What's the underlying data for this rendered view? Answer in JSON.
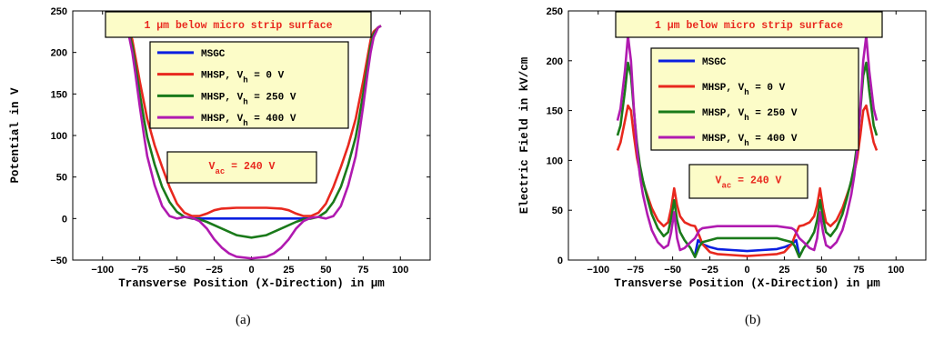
{
  "chart_data": [
    {
      "type": "line",
      "panel_caption": "(a)",
      "xlabel": "Transverse Position (X-Direction) in μm",
      "ylabel": "Potential in V",
      "xlim": [
        -120,
        120
      ],
      "ylim": [
        -50,
        250
      ],
      "xticks": [
        -100,
        -75,
        -50,
        -25,
        0,
        25,
        50,
        75,
        100
      ],
      "yticks": [
        -50,
        0,
        50,
        100,
        150,
        200,
        250
      ],
      "grid": false,
      "legend_placement": "top-center",
      "annotations": [
        {
          "id": "surface_note",
          "text": "1 μm below micro strip surface",
          "position": "top-center"
        },
        {
          "id": "vac_note",
          "text": "V_ac = 240 V",
          "position": "center"
        }
      ],
      "series": [
        {
          "name": "MSGC",
          "color": "#0a1fe0",
          "x": [
            -40,
            -20,
            0,
            20,
            40
          ],
          "y": [
            0,
            0,
            0,
            0,
            0
          ]
        },
        {
          "name": "MHSP, V_h = 0 V",
          "color": "#e8281e",
          "x": [
            -87,
            -85,
            -82,
            -80,
            -78,
            -75,
            -72,
            -70,
            -65,
            -60,
            -55,
            -50,
            -45,
            -40,
            -35,
            -30,
            -25,
            -20,
            -10,
            0,
            10,
            20,
            25,
            30,
            35,
            40,
            45,
            50,
            55,
            60,
            65,
            70,
            72,
            75,
            78,
            80,
            82,
            85,
            87
          ],
          "y": [
            232,
            230,
            225,
            215,
            195,
            165,
            138,
            120,
            88,
            62,
            38,
            18,
            7,
            3,
            3,
            6,
            10,
            12,
            13,
            13,
            13,
            12,
            10,
            6,
            3,
            3,
            7,
            18,
            38,
            62,
            88,
            120,
            138,
            165,
            195,
            215,
            225,
            230,
            232
          ]
        },
        {
          "name": "MHSP, V_h = 250 V",
          "color": "#1a7a1a",
          "x": [
            -87,
            -85,
            -82,
            -80,
            -78,
            -75,
            -72,
            -70,
            -65,
            -60,
            -55,
            -50,
            -45,
            -40,
            -35,
            -30,
            -20,
            -10,
            0,
            10,
            20,
            30,
            35,
            40,
            45,
            50,
            55,
            60,
            65,
            70,
            72,
            75,
            78,
            80,
            82,
            85,
            87
          ],
          "y": [
            232,
            230,
            222,
            208,
            185,
            150,
            118,
            98,
            65,
            38,
            20,
            8,
            2,
            0,
            -1,
            -4,
            -12,
            -20,
            -23,
            -20,
            -12,
            -4,
            -1,
            0,
            2,
            8,
            20,
            38,
            65,
            98,
            118,
            150,
            185,
            208,
            222,
            230,
            232
          ]
        },
        {
          "name": "MHSP, V_h = 400 V",
          "color": "#b01ab0",
          "x": [
            -87,
            -85,
            -82,
            -80,
            -78,
            -75,
            -72,
            -70,
            -65,
            -60,
            -55,
            -50,
            -47,
            -45,
            -40,
            -35,
            -30,
            -25,
            -20,
            -15,
            -10,
            0,
            10,
            15,
            20,
            25,
            30,
            35,
            40,
            45,
            47,
            50,
            55,
            60,
            65,
            70,
            72,
            75,
            78,
            80,
            82,
            85,
            87
          ],
          "y": [
            232,
            230,
            218,
            200,
            175,
            135,
            98,
            75,
            40,
            15,
            3,
            0,
            1,
            2,
            1,
            -3,
            -12,
            -25,
            -35,
            -42,
            -46,
            -48,
            -46,
            -42,
            -35,
            -25,
            -12,
            -3,
            1,
            2,
            1,
            0,
            3,
            15,
            40,
            75,
            98,
            135,
            175,
            200,
            218,
            230,
            232
          ]
        }
      ]
    },
    {
      "type": "line",
      "panel_caption": "(b)",
      "xlabel": "Transverse Position (X-Direction) in μm",
      "ylabel": "Electric Field in kV/cm",
      "xlim": [
        -120,
        120
      ],
      "ylim": [
        0,
        250
      ],
      "xticks": [
        -100,
        -75,
        -50,
        -25,
        0,
        25,
        50,
        75,
        100
      ],
      "yticks": [
        0,
        50,
        100,
        150,
        200,
        250
      ],
      "grid": false,
      "legend_placement": "top-center",
      "annotations": [
        {
          "id": "surface_note",
          "text": "1 μm below micro strip surface",
          "position": "top-center"
        },
        {
          "id": "vac_note",
          "text": "V_ac = 240 V",
          "position": "center"
        }
      ],
      "series": [
        {
          "name": "MSGC",
          "color": "#0a1fe0",
          "x": [
            -35,
            -33,
            -30,
            -25,
            -20,
            -10,
            0,
            10,
            20,
            25,
            30,
            33,
            35
          ],
          "y": [
            5,
            20,
            16,
            13,
            11,
            10,
            9,
            10,
            11,
            13,
            16,
            20,
            5
          ]
        },
        {
          "name": "MHSP, V_h = 0 V",
          "color": "#e8281e",
          "x": [
            -87,
            -85,
            -82,
            -80,
            -78,
            -76,
            -74,
            -72,
            -70,
            -67,
            -64,
            -60,
            -56,
            -53,
            -51,
            -49,
            -47,
            -45,
            -42,
            -38,
            -35,
            -32,
            -30,
            -25,
            -20,
            -10,
            0,
            10,
            20,
            25,
            30,
            32,
            35,
            38,
            42,
            45,
            47,
            49,
            51,
            53,
            56,
            60,
            64,
            67,
            70,
            72,
            74,
            76,
            78,
            80,
            82,
            85,
            87
          ],
          "y": [
            110,
            118,
            140,
            155,
            150,
            125,
            103,
            88,
            78,
            65,
            52,
            40,
            34,
            38,
            52,
            72,
            55,
            44,
            38,
            35,
            34,
            24,
            16,
            8,
            6,
            5,
            4,
            5,
            6,
            8,
            16,
            24,
            34,
            35,
            38,
            44,
            55,
            72,
            52,
            38,
            34,
            40,
            52,
            65,
            78,
            88,
            103,
            125,
            150,
            155,
            140,
            118,
            110
          ]
        },
        {
          "name": "MHSP, V_h = 250 V",
          "color": "#1a7a1a",
          "x": [
            -87,
            -85,
            -82,
            -80,
            -78,
            -76,
            -74,
            -72,
            -70,
            -67,
            -64,
            -60,
            -56,
            -53,
            -51,
            -49,
            -47,
            -45,
            -42,
            -38,
            -35,
            -32,
            -30,
            -25,
            -20,
            -10,
            0,
            10,
            20,
            25,
            30,
            32,
            35,
            38,
            42,
            45,
            47,
            49,
            51,
            53,
            56,
            60,
            64,
            67,
            70,
            72,
            74,
            76,
            78,
            80,
            82,
            85,
            87
          ],
          "y": [
            125,
            135,
            170,
            198,
            185,
            150,
            118,
            95,
            80,
            62,
            46,
            32,
            24,
            28,
            42,
            60,
            40,
            28,
            20,
            12,
            3,
            14,
            18,
            20,
            22,
            22,
            22,
            22,
            22,
            20,
            18,
            14,
            3,
            12,
            20,
            28,
            40,
            60,
            42,
            28,
            24,
            32,
            46,
            62,
            80,
            95,
            118,
            150,
            185,
            198,
            170,
            135,
            125
          ]
        },
        {
          "name": "MHSP, V_h = 400 V",
          "color": "#b01ab0",
          "x": [
            -87,
            -85,
            -82,
            -80,
            -78,
            -76,
            -74,
            -72,
            -70,
            -67,
            -64,
            -60,
            -56,
            -53,
            -51,
            -49,
            -47,
            -45,
            -42,
            -38,
            -35,
            -32,
            -30,
            -25,
            -20,
            -10,
            0,
            10,
            20,
            25,
            30,
            32,
            35,
            38,
            42,
            45,
            47,
            49,
            51,
            53,
            56,
            60,
            64,
            67,
            70,
            72,
            74,
            76,
            78,
            80,
            82,
            85,
            87
          ],
          "y": [
            140,
            152,
            190,
            225,
            200,
            152,
            112,
            85,
            66,
            46,
            30,
            18,
            12,
            15,
            28,
            48,
            22,
            10,
            12,
            18,
            22,
            30,
            32,
            33,
            34,
            34,
            34,
            34,
            34,
            33,
            32,
            30,
            22,
            18,
            12,
            10,
            22,
            48,
            28,
            15,
            12,
            18,
            30,
            46,
            66,
            85,
            112,
            152,
            200,
            225,
            190,
            152,
            140
          ]
        }
      ]
    }
  ]
}
